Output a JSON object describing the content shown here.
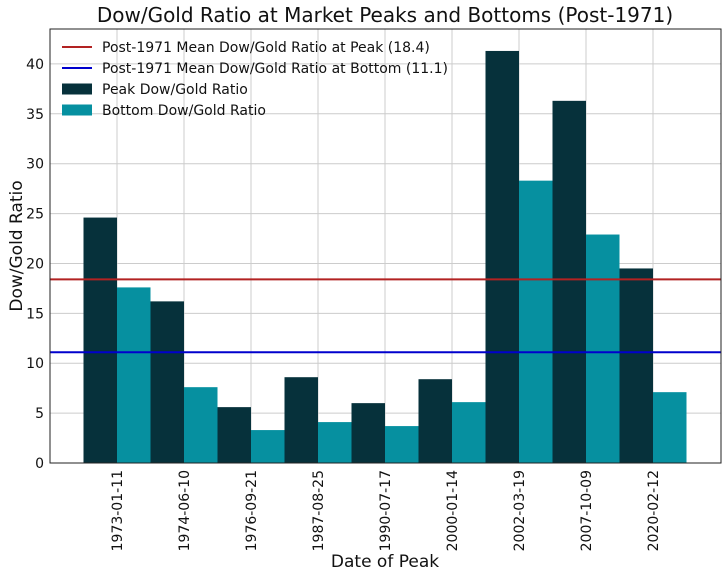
{
  "chart_data": {
    "type": "bar",
    "title": "Dow/Gold Ratio at Market Peaks and Bottoms (Post-1971)",
    "xlabel": "Date of Peak",
    "ylabel": "Dow/Gold Ratio",
    "ylim": [
      0,
      43.5
    ],
    "yticks": [
      0,
      5,
      10,
      15,
      20,
      25,
      30,
      35,
      40
    ],
    "grid": true,
    "legend_position": "top-left",
    "categories": [
      "1973-01-11",
      "1974-06-10",
      "1976-09-21",
      "1987-08-25",
      "1990-07-17",
      "2000-01-14",
      "2002-03-19",
      "2007-10-09",
      "2020-02-12"
    ],
    "series": [
      {
        "name": "Peak Dow/Gold Ratio",
        "color": "#06313b",
        "values": [
          24.6,
          16.2,
          5.6,
          8.6,
          6.0,
          8.4,
          41.3,
          36.3,
          19.5
        ]
      },
      {
        "name": "Bottom Dow/Gold Ratio",
        "color": "#0690a0",
        "values": [
          17.6,
          7.6,
          3.3,
          4.1,
          3.7,
          6.1,
          28.3,
          22.9,
          7.1
        ]
      }
    ],
    "reference_lines": [
      {
        "name": "Post-1971 Mean Dow/Gold Ratio at Peak (18.4)",
        "value": 18.4,
        "color": "#b22222"
      },
      {
        "name": "Post-1971 Mean Dow/Gold Ratio at Bottom (11.1)",
        "value": 11.1,
        "color": "#0000cd"
      }
    ]
  }
}
